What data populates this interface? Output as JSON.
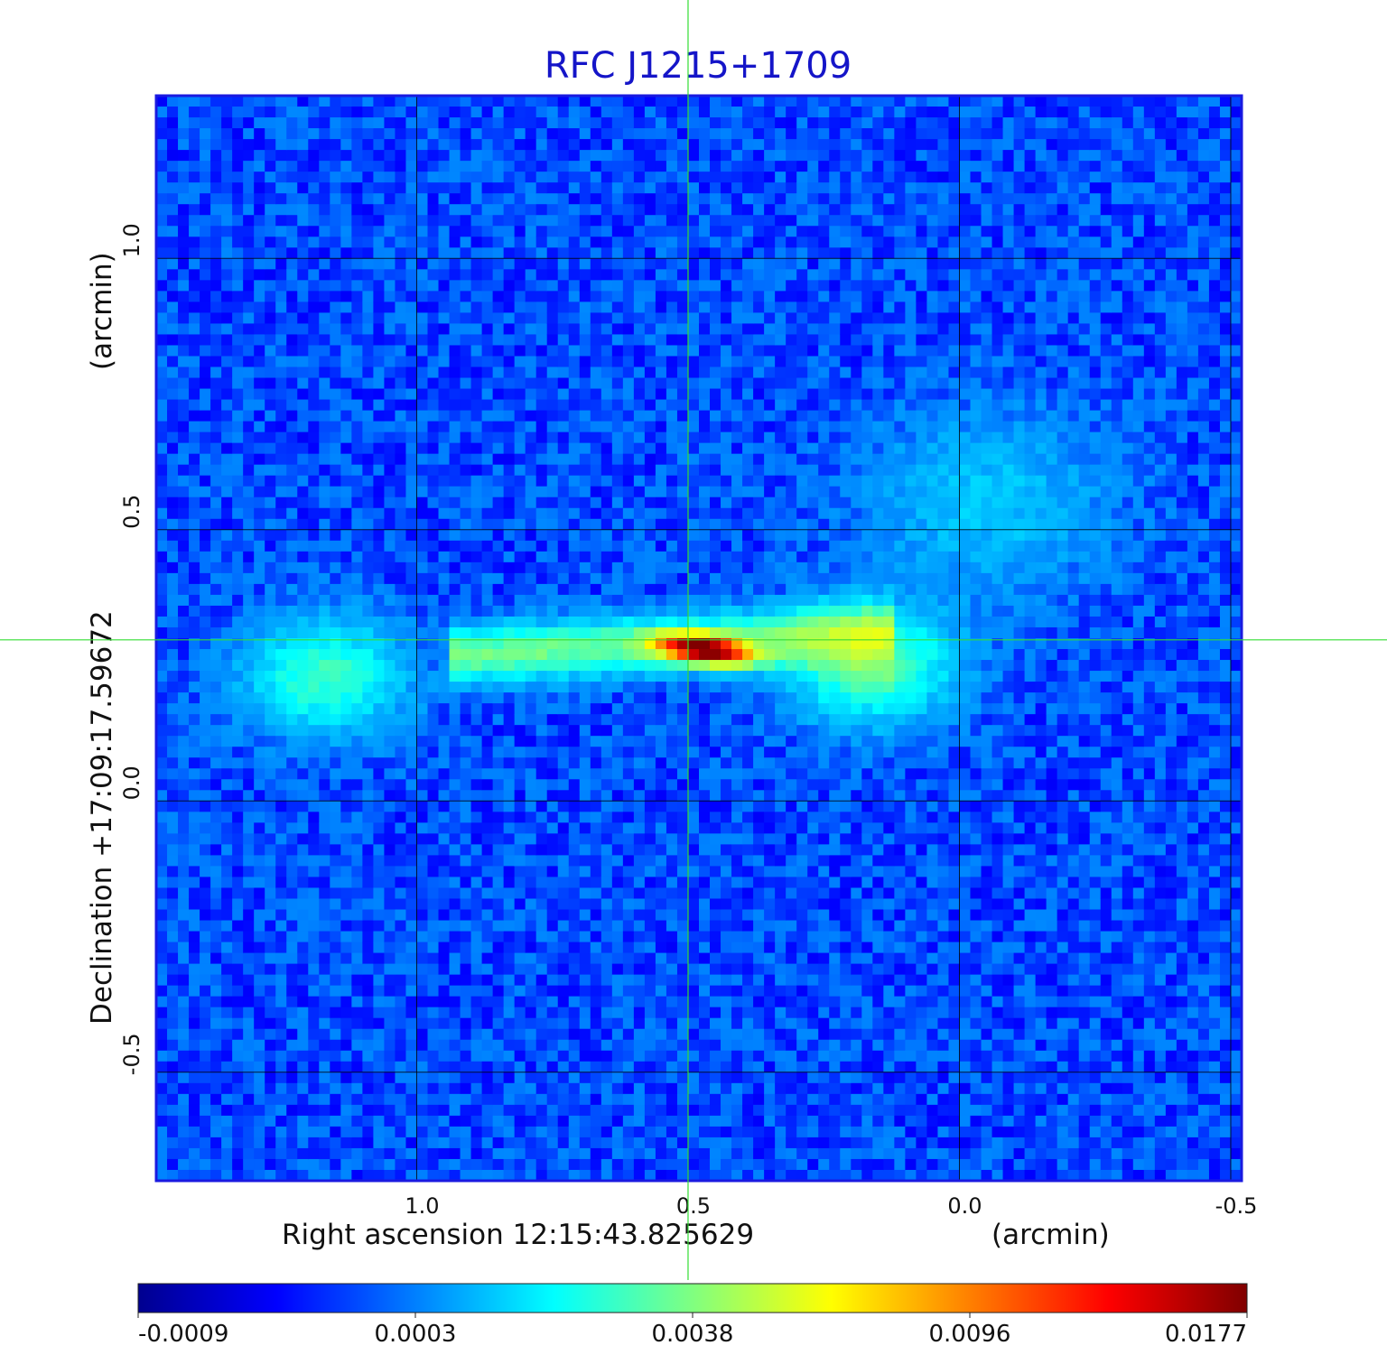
{
  "chart_data": {
    "type": "heatmap",
    "title": "RFC J1215+1709",
    "xlabel": "Right ascension  12:15:43.825629",
    "xlabel_unit": "(arcmin)",
    "ylabel": "Declination  +17:09:17.59672",
    "ylabel_unit": "(arcmin)",
    "x_ticks": [
      "1.0",
      "0.5",
      "0.0",
      "-0.5"
    ],
    "x_tick_values": [
      1.0,
      0.5,
      0.0,
      -0.5
    ],
    "xlim": [
      1.48,
      -0.52
    ],
    "y_ticks": [
      "1.0",
      "0.5",
      "0.0",
      "-0.5"
    ],
    "y_tick_values": [
      1.0,
      0.5,
      0.0,
      -0.5
    ],
    "ylim": [
      -0.7,
      1.3
    ],
    "grid": true,
    "crosshair": {
      "x": 0.5,
      "y": 0.297
    },
    "colormap": "jet",
    "colorbar": {
      "tick_labels": [
        "-0.0009",
        "0.0003",
        "0.0038",
        "0.0096",
        "0.0177"
      ],
      "tick_values": [
        -0.0009,
        0.0003,
        0.0038,
        0.0096,
        0.0177
      ],
      "range": [
        -0.0009,
        0.0177
      ],
      "placement": "bottom"
    },
    "features": [
      {
        "kind": "core",
        "x": 0.47,
        "y": 0.28,
        "peak": 0.0177
      },
      {
        "kind": "jet",
        "from_x": 0.95,
        "to_x": 0.12,
        "y": 0.29,
        "level": 0.0035
      },
      {
        "kind": "lobe",
        "x": 1.17,
        "y": 0.23,
        "level": 0.0028
      },
      {
        "kind": "lobe",
        "x": 0.16,
        "y": 0.25,
        "level": 0.0033
      },
      {
        "kind": "diffuse",
        "x": -0.05,
        "y": 0.55,
        "level": 0.0012
      }
    ]
  }
}
